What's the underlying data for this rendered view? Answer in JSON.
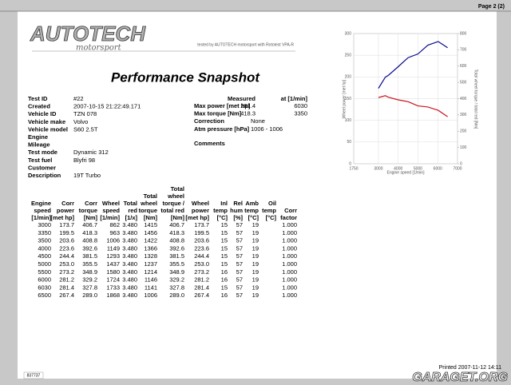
{
  "header": {
    "page": "Page 2 (2)",
    "logo": "AUTOTECH",
    "logo_sub": "motorsport",
    "tested_by": "tested by AUTOTECH motorsport with Rototest VPA-R"
  },
  "title": "Performance Snapshot",
  "info": [
    [
      "Test ID",
      "#22"
    ],
    [
      "Created",
      "2007-10-15 21:22:49.171"
    ],
    [
      "Vehicle ID",
      "TZN 078"
    ],
    [
      "Vehicle make",
      "Volvo"
    ],
    [
      "Vehicle model",
      "S60 2.5T"
    ],
    [
      "Engine"
    ],
    [
      "Mileage"
    ],
    [
      "Test mode",
      "Dynamic 312"
    ],
    [
      "Test fuel",
      "Blyfri 98"
    ],
    [
      "Customer"
    ],
    [
      "Description",
      "19T Turbo"
    ]
  ],
  "results": {
    "headers": [
      "Measured",
      "at [1/min]"
    ],
    "rows": [
      [
        "Max power [met hp]",
        "281.4",
        "6030"
      ],
      [
        "Max torque [Nm]",
        "418.3",
        "3350"
      ],
      [
        "Correction",
        "None"
      ],
      [
        "Atm pressure [hPa]",
        "1006 - 1006"
      ]
    ],
    "comments": "Comments"
  },
  "chart": {
    "x_label": "Engine speed [1/min]",
    "y_label": "Wheel power [met hp]",
    "y2_label": "Total wheel torque / total red [Nm]",
    "xlim": [
      1750,
      7000
    ],
    "xticks": [
      1750,
      3000,
      4000,
      5000,
      6000,
      7000
    ],
    "ylim": [
      0,
      300
    ],
    "yticks": [
      0,
      50,
      100,
      150,
      200,
      250,
      300
    ],
    "y2lim": [
      0,
      800
    ],
    "y2ticks": [
      0,
      100,
      200,
      300,
      400,
      500,
      600,
      700,
      800
    ],
    "power_color": "#0a0a8c",
    "torque_color": "#c8141e",
    "grid": true
  },
  "table": {
    "columns": [
      [
        "Engine",
        "speed",
        "[1/min]"
      ],
      [
        "Corr",
        "power",
        "[met hp]"
      ],
      [
        "Corr",
        "torque",
        "[Nm]"
      ],
      [
        "Wheel",
        "speed",
        "[1/min]"
      ],
      [
        "Total",
        "red",
        "[1/x]"
      ],
      [
        "Total",
        "wheel",
        "torque",
        "[Nm]"
      ],
      [
        "Total",
        "wheel",
        "torque /",
        "total red",
        "[Nm]"
      ],
      [
        "Wheel",
        "power",
        "[met hp]"
      ],
      [
        "Inl",
        "temp",
        "[°C]"
      ],
      [
        "Rel",
        "hum",
        "[%]"
      ],
      [
        "Amb",
        "temp",
        "[°C]"
      ],
      [
        "Oil",
        "temp",
        "[°C]"
      ],
      [
        "Corr",
        "factor"
      ]
    ],
    "rows": [
      [
        "3000",
        "173.7",
        "406.7",
        "862",
        "3.480",
        "1415",
        "406.7",
        "173.7",
        "15",
        "57",
        "19",
        null,
        "1.000"
      ],
      [
        "3350",
        "199.5",
        "418.3",
        "963",
        "3.480",
        "1456",
        "418.3",
        "199.5",
        "15",
        "57",
        "19",
        null,
        "1.000"
      ],
      [
        "3500",
        "203.6",
        "408.8",
        "1006",
        "3.480",
        "1422",
        "408.8",
        "203.6",
        "15",
        "57",
        "19",
        null,
        "1.000"
      ],
      [
        "4000",
        "223.6",
        "392.6",
        "1149",
        "3.480",
        "1366",
        "392.6",
        "223.6",
        "15",
        "57",
        "19",
        null,
        "1.000"
      ],
      [
        "4500",
        "244.4",
        "381.5",
        "1293",
        "3.480",
        "1328",
        "381.5",
        "244.4",
        "15",
        "57",
        "19",
        null,
        "1.000"
      ],
      [
        "5000",
        "253.0",
        "355.5",
        "1437",
        "3.480",
        "1237",
        "355.5",
        "253.0",
        "15",
        "57",
        "19",
        null,
        "1.000"
      ],
      [
        "5500",
        "273.2",
        "348.9",
        "1580",
        "3.480",
        "1214",
        "348.9",
        "273.2",
        "16",
        "57",
        "19",
        null,
        "1.000"
      ],
      [
        "6000",
        "281.2",
        "329.2",
        "1724",
        "3.480",
        "1146",
        "329.2",
        "281.2",
        "16",
        "57",
        "19",
        null,
        "1.000"
      ],
      [
        "6030",
        "281.4",
        "327.8",
        "1733",
        "3.480",
        "1141",
        "327.8",
        "281.4",
        "15",
        "57",
        "19",
        null,
        "1.000"
      ],
      [
        "6500",
        "267.4",
        "289.0",
        "1868",
        "3.480",
        "1006",
        "289.0",
        "267.4",
        "16",
        "57",
        "19",
        null,
        "1.000"
      ]
    ]
  },
  "footer": {
    "printed": "Printed 2007-11-12 14:11",
    "id": "837737",
    "watermark": "GARAGET.ORG"
  }
}
